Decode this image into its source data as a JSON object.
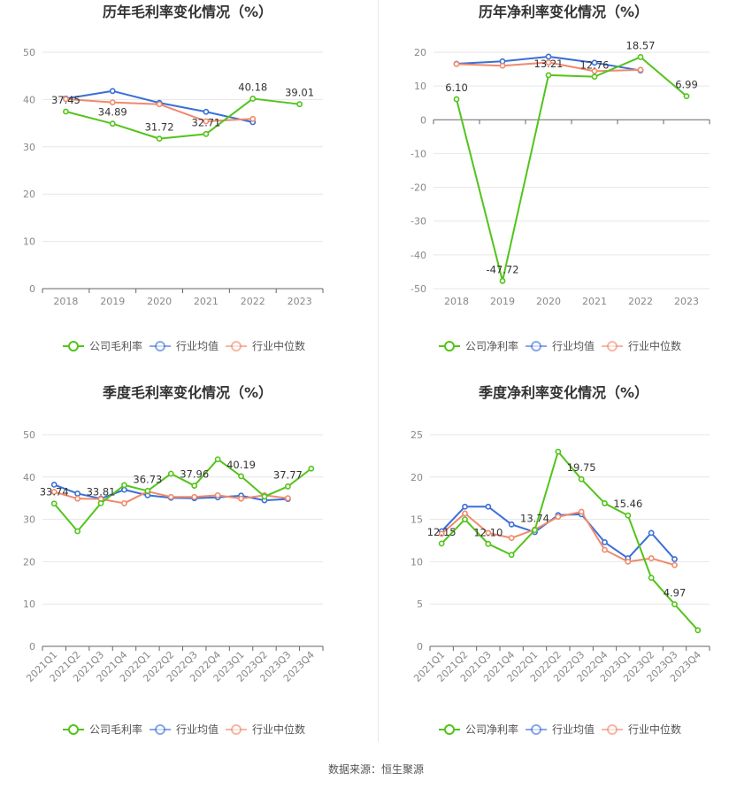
{
  "source_text": "数据来源：恒生聚源",
  "colors": {
    "company": "#52c41a",
    "industry_avg": "#3a6fd8",
    "industry_median": "#f08a6c"
  },
  "chart_data": [
    {
      "type": "line",
      "title": "历年毛利率变化情况（%）",
      "categories": [
        "2018",
        "2019",
        "2020",
        "2021",
        "2022",
        "2023"
      ],
      "ylim": [
        0,
        50
      ],
      "yticks": [
        0,
        10,
        20,
        30,
        40,
        50
      ],
      "grid": true,
      "legend_position": "bottom",
      "series": [
        {
          "name": "公司毛利率",
          "color": "#52c41a",
          "values": [
            37.45,
            34.89,
            31.72,
            32.71,
            40.18,
            39.01
          ]
        },
        {
          "name": "行业均值",
          "color": "#3a6fd8",
          "values": [
            40.2,
            41.8,
            39.3,
            37.4,
            35.2,
            null
          ]
        },
        {
          "name": "行业中位数",
          "color": "#f08a6c",
          "values": [
            40.1,
            39.4,
            39.0,
            35.4,
            35.9,
            null
          ]
        }
      ],
      "labels": [
        {
          "index": 0,
          "text": "37.45",
          "pos": "above"
        },
        {
          "index": 1,
          "text": "34.89",
          "pos": "above"
        },
        {
          "index": 2,
          "text": "31.72",
          "pos": "above"
        },
        {
          "index": 3,
          "text": "32.71",
          "pos": "above"
        },
        {
          "index": 4,
          "text": "40.18",
          "pos": "above"
        },
        {
          "index": 5,
          "text": "39.01",
          "pos": "above"
        }
      ]
    },
    {
      "type": "line",
      "title": "历年净利率变化情况（%）",
      "categories": [
        "2018",
        "2019",
        "2020",
        "2021",
        "2022",
        "2023"
      ],
      "ylim": [
        -50,
        20
      ],
      "yticks": [
        -50,
        -40,
        -30,
        -20,
        -10,
        0,
        10,
        20
      ],
      "grid": true,
      "legend_position": "bottom",
      "series": [
        {
          "name": "公司净利率",
          "color": "#52c41a",
          "values": [
            6.1,
            -47.72,
            13.21,
            12.76,
            18.57,
            6.99
          ]
        },
        {
          "name": "行业均值",
          "color": "#3a6fd8",
          "values": [
            16.6,
            17.3,
            18.7,
            16.9,
            14.6,
            null
          ]
        },
        {
          "name": "行业中位数",
          "color": "#f08a6c",
          "values": [
            16.5,
            16.0,
            17.0,
            14.4,
            14.8,
            null
          ]
        }
      ],
      "labels": [
        {
          "index": 0,
          "text": "6.10",
          "pos": "above"
        },
        {
          "index": 1,
          "text": "-47.72",
          "pos": "above"
        },
        {
          "index": 2,
          "text": "13.21",
          "pos": "above"
        },
        {
          "index": 3,
          "text": "12.76",
          "pos": "above"
        },
        {
          "index": 4,
          "text": "18.57",
          "pos": "above"
        },
        {
          "index": 5,
          "text": "6.99",
          "pos": "above"
        }
      ]
    },
    {
      "type": "line",
      "title": "季度毛利率变化情况（%）",
      "categories": [
        "2021Q1",
        "2021Q2",
        "2021Q3",
        "2021Q4",
        "2022Q1",
        "2022Q2",
        "2022Q3",
        "2022Q4",
        "2023Q1",
        "2023Q2",
        "2023Q3",
        "2023Q4"
      ],
      "ylim": [
        0,
        50
      ],
      "yticks": [
        0,
        10,
        20,
        30,
        40,
        50
      ],
      "grid": true,
      "legend_position": "bottom",
      "series": [
        {
          "name": "公司毛利率",
          "color": "#52c41a",
          "values": [
            33.74,
            27.2,
            33.81,
            38.1,
            36.73,
            40.8,
            37.96,
            44.2,
            40.19,
            35.4,
            37.77,
            42.0
          ]
        },
        {
          "name": "行业均值",
          "color": "#3a6fd8",
          "values": [
            38.2,
            36.1,
            34.9,
            37.0,
            35.7,
            35.1,
            35.0,
            35.2,
            35.6,
            34.5,
            34.8,
            null
          ]
        },
        {
          "name": "行业中位数",
          "color": "#f08a6c",
          "values": [
            36.5,
            34.9,
            34.8,
            33.8,
            36.6,
            35.3,
            35.3,
            35.7,
            34.9,
            35.7,
            35.0,
            null
          ]
        }
      ],
      "labels": [
        {
          "index": 0,
          "text": "33.74",
          "pos": "above"
        },
        {
          "index": 2,
          "text": "33.81",
          "pos": "above"
        },
        {
          "index": 4,
          "text": "36.73",
          "pos": "above"
        },
        {
          "index": 6,
          "text": "37.96",
          "pos": "above"
        },
        {
          "index": 8,
          "text": "40.19",
          "pos": "above"
        },
        {
          "index": 10,
          "text": "37.77",
          "pos": "above"
        }
      ]
    },
    {
      "type": "line",
      "title": "季度净利率变化情况（%）",
      "categories": [
        "2021Q1",
        "2021Q2",
        "2021Q3",
        "2021Q4",
        "2022Q1",
        "2022Q2",
        "2022Q3",
        "2022Q4",
        "2023Q1",
        "2023Q2",
        "2023Q3",
        "2023Q4"
      ],
      "ylim": [
        0,
        25
      ],
      "yticks": [
        0,
        5,
        10,
        15,
        20,
        25
      ],
      "grid": true,
      "legend_position": "bottom",
      "series": [
        {
          "name": "公司净利率",
          "color": "#52c41a",
          "values": [
            12.15,
            15.0,
            12.1,
            10.8,
            13.74,
            23.0,
            19.75,
            16.9,
            15.46,
            8.1,
            4.97,
            1.9
          ]
        },
        {
          "name": "行业均值",
          "color": "#3a6fd8",
          "values": [
            13.6,
            16.5,
            16.5,
            14.4,
            13.5,
            15.5,
            15.6,
            12.3,
            10.4,
            13.4,
            10.3,
            null
          ]
        },
        {
          "name": "行业中位数",
          "color": "#f08a6c",
          "values": [
            13.3,
            15.7,
            13.4,
            12.8,
            13.8,
            15.3,
            15.9,
            11.4,
            10.0,
            10.4,
            9.6,
            null
          ]
        }
      ],
      "labels": [
        {
          "index": 0,
          "text": "12.15",
          "pos": "above"
        },
        {
          "index": 2,
          "text": "12.10",
          "pos": "above"
        },
        {
          "index": 4,
          "text": "13.74",
          "pos": "above"
        },
        {
          "index": 6,
          "text": "19.75",
          "pos": "above"
        },
        {
          "index": 8,
          "text": "15.46",
          "pos": "above"
        },
        {
          "index": 10,
          "text": "4.97",
          "pos": "above"
        }
      ]
    }
  ]
}
